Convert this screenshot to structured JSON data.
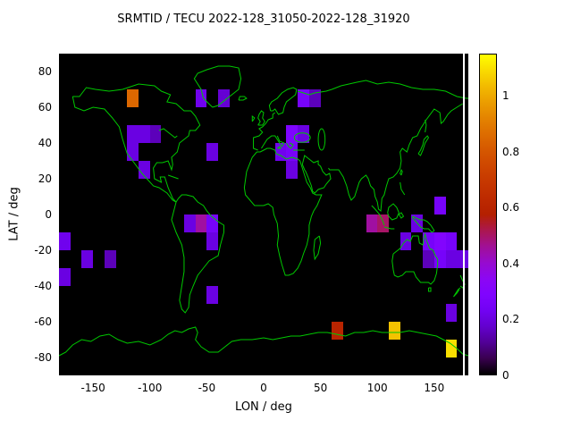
{
  "title": "SRMTID / TECU 2022-128_31050-2022-128_31920",
  "axes": {
    "xlabel": "LON / deg",
    "ylabel": "LAT / deg",
    "xlim": [
      -180,
      180
    ],
    "ylim": [
      -90,
      90
    ],
    "x_ticks": [
      -150,
      -100,
      -50,
      0,
      50,
      100,
      150
    ],
    "y_ticks": [
      -80,
      -60,
      -40,
      -20,
      0,
      20,
      40,
      60,
      80
    ]
  },
  "colorbar": {
    "min": 0,
    "max": 1.15,
    "ticks": [
      0,
      0.2,
      0.4,
      0.6,
      0.8,
      1
    ],
    "palette": "gnuplot-pm3d-rgbformulae-7-5-15",
    "low_color": "#000000",
    "high_color": "#ffff00"
  },
  "map": {
    "background": "#000000",
    "coastline_color": "#00c800"
  },
  "chart_data": {
    "type": "heatmap",
    "units": "TECU",
    "title": "SRMTID / TECU 2022-128_31050-2022-128_31920",
    "xlabel": "LON / deg",
    "ylabel": "LAT / deg",
    "xlim": [
      -180,
      180
    ],
    "ylim": [
      -90,
      90
    ],
    "value_range": [
      0,
      1.15
    ],
    "cell_size_deg": 10,
    "cell_format": [
      "lon_min",
      "lat_min",
      "value_tecu"
    ],
    "cells": [
      [
        -120,
        60,
        0.85
      ],
      [
        -60,
        60,
        0.22
      ],
      [
        -40,
        60,
        0.18
      ],
      [
        30,
        60,
        0.25
      ],
      [
        40,
        60,
        0.15
      ],
      [
        -120,
        40,
        0.2
      ],
      [
        -110,
        40,
        0.2
      ],
      [
        -100,
        40,
        0.15
      ],
      [
        20,
        40,
        0.28
      ],
      [
        30,
        40,
        0.2
      ],
      [
        -120,
        30,
        0.2
      ],
      [
        -50,
        30,
        0.2
      ],
      [
        10,
        30,
        0.22
      ],
      [
        20,
        30,
        0.25
      ],
      [
        -110,
        20,
        0.2
      ],
      [
        20,
        20,
        0.2
      ],
      [
        150,
        0,
        0.25
      ],
      [
        -70,
        -10,
        0.2
      ],
      [
        -60,
        -10,
        0.45
      ],
      [
        -50,
        -10,
        0.25
      ],
      [
        -50,
        -20,
        0.2
      ],
      [
        -180,
        -20,
        0.22
      ],
      [
        -160,
        -30,
        0.2
      ],
      [
        -140,
        -30,
        0.15
      ],
      [
        -180,
        -40,
        0.2
      ],
      [
        -50,
        -50,
        0.2
      ],
      [
        90,
        -10,
        0.45
      ],
      [
        100,
        -10,
        0.5
      ],
      [
        120,
        -20,
        0.2
      ],
      [
        130,
        -10,
        0.2
      ],
      [
        140,
        -20,
        0.25
      ],
      [
        150,
        -20,
        0.3
      ],
      [
        160,
        -20,
        0.25
      ],
      [
        140,
        -30,
        0.15
      ],
      [
        150,
        -30,
        0.25
      ],
      [
        160,
        -30,
        0.2
      ],
      [
        170,
        -30,
        0.2
      ],
      [
        160,
        -60,
        0.2
      ],
      [
        60,
        -70,
        0.6
      ],
      [
        110,
        -70,
        1.05
      ],
      [
        160,
        -80,
        1.1
      ]
    ]
  }
}
